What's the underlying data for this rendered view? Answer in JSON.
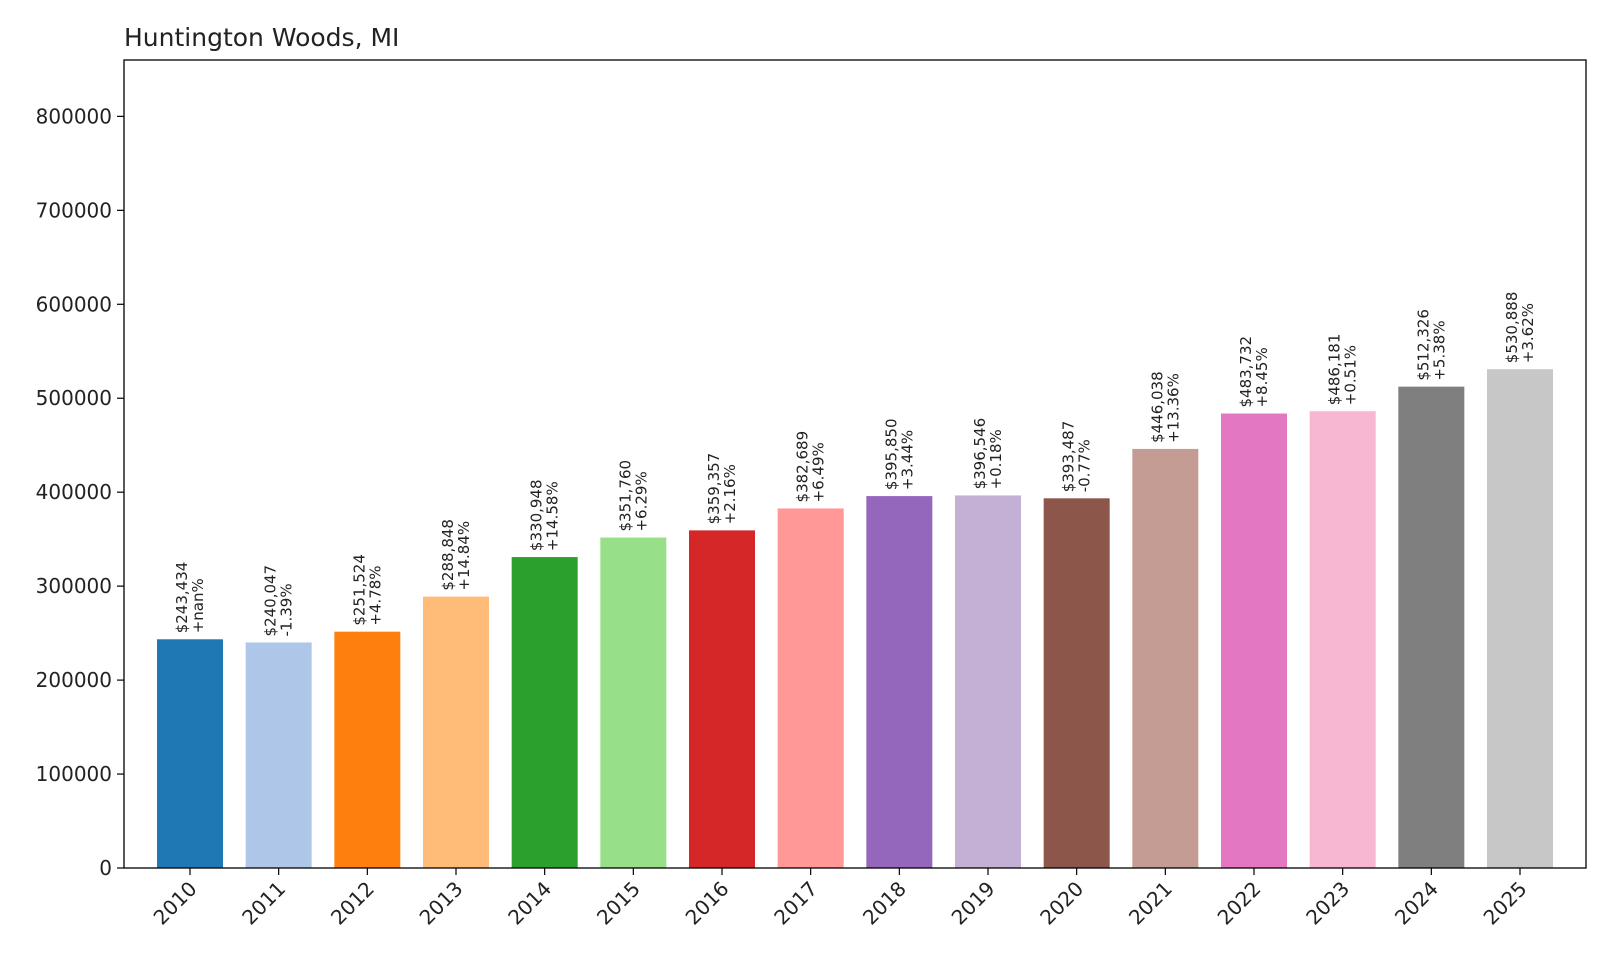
{
  "chart_data": {
    "type": "bar",
    "title": "Huntington Woods, MI",
    "xlabel": "",
    "ylabel": "",
    "ylim": [
      0,
      860000
    ],
    "yticks": [
      0,
      100000,
      200000,
      300000,
      400000,
      500000,
      600000,
      700000,
      800000
    ],
    "ytick_labels": [
      "0",
      "100000",
      "200000",
      "300000",
      "400000",
      "500000",
      "600000",
      "700000",
      "800000"
    ],
    "grid": false,
    "legend": "none",
    "categories": [
      "2010",
      "2011",
      "2012",
      "2013",
      "2014",
      "2015",
      "2016",
      "2017",
      "2018",
      "2019",
      "2020",
      "2021",
      "2022",
      "2023",
      "2024",
      "2025"
    ],
    "values": [
      243434,
      240047,
      251524,
      288848,
      330948,
      351760,
      359357,
      382689,
      395850,
      396546,
      393487,
      446038,
      483732,
      486181,
      512326,
      530888
    ],
    "value_labels": [
      "$243,434",
      "$240,047",
      "$251,524",
      "$288,848",
      "$330,948",
      "$351,760",
      "$359,357",
      "$382,689",
      "$395,850",
      "$396,546",
      "$393,487",
      "$446,038",
      "$483,732",
      "$486,181",
      "$512,326",
      "$530,888"
    ],
    "change_labels": [
      "+nan%",
      "-1.39%",
      "+4.78%",
      "+14.84%",
      "+14.58%",
      "+6.29%",
      "+2.16%",
      "+6.49%",
      "+3.44%",
      "+0.18%",
      "-0.77%",
      "+13.36%",
      "+8.45%",
      "+0.51%",
      "+5.38%",
      "+3.62%"
    ],
    "colors": [
      "#1f77b4",
      "#aec7e8",
      "#ff7f0e",
      "#ffbb78",
      "#2ca02c",
      "#98df8a",
      "#d62728",
      "#ff9896",
      "#9467bd",
      "#c5b0d5",
      "#8c564b",
      "#c49c94",
      "#e377c2",
      "#f7b6d2",
      "#7f7f7f",
      "#c7c7c7"
    ]
  }
}
